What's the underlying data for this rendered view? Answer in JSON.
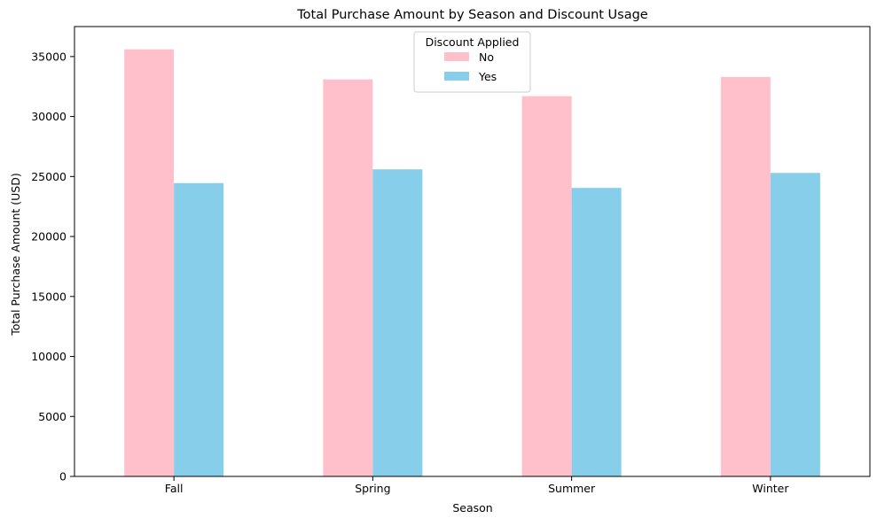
{
  "chart_data": {
    "type": "bar",
    "title": "Total Purchase Amount by Season and Discount Usage",
    "xlabel": "Season",
    "ylabel": "Total Purchase Amount (USD)",
    "categories": [
      "Fall",
      "Spring",
      "Summer",
      "Winter"
    ],
    "series": [
      {
        "name": "No",
        "color": "#FFC0CB",
        "values": [
          35600,
          33100,
          31700,
          33300
        ]
      },
      {
        "name": "Yes",
        "color": "#87CEEB",
        "values": [
          24450,
          25600,
          24050,
          25300
        ]
      }
    ],
    "ylim": [
      0,
      37500
    ],
    "yticks": [
      0,
      5000,
      10000,
      15000,
      20000,
      25000,
      30000,
      35000
    ],
    "grid": false,
    "legend": {
      "title": "Discount Applied",
      "position": "top-center"
    }
  }
}
